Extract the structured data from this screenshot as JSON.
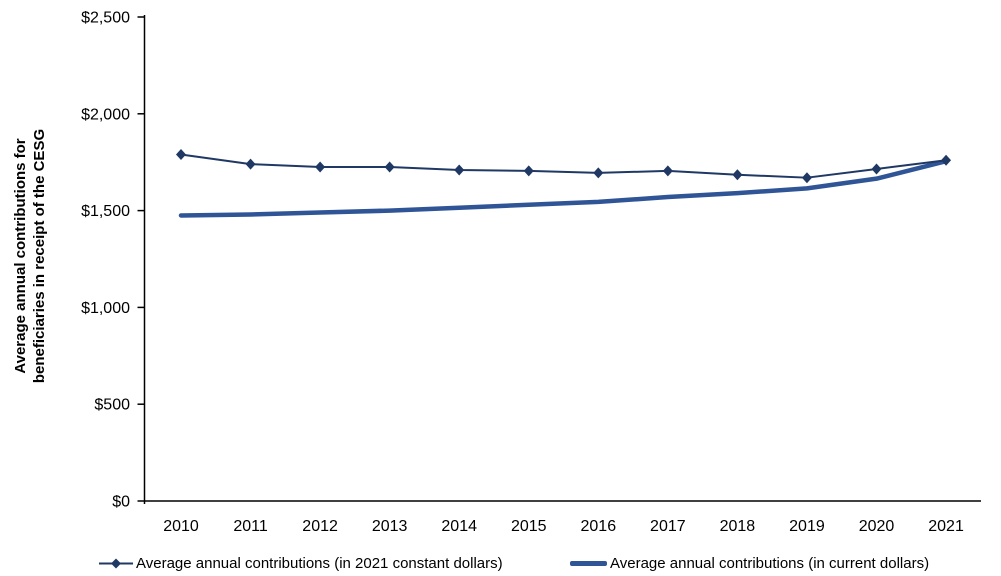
{
  "chart_data": {
    "type": "line",
    "title": "",
    "xlabel": "",
    "ylabel_lines": [
      "Average annual contributions for",
      "beneficiaries in receipt of the CESG"
    ],
    "categories": [
      "2010",
      "2011",
      "2012",
      "2013",
      "2014",
      "2015",
      "2016",
      "2017",
      "2018",
      "2019",
      "2020",
      "2021"
    ],
    "series": [
      {
        "name": "Average annual contributions (in 2021 constant dollars)",
        "marker": "diamond",
        "color": "#1f3864",
        "line_width": 2,
        "values": [
          1790,
          1740,
          1725,
          1725,
          1710,
          1705,
          1695,
          1705,
          1685,
          1670,
          1715,
          1760
        ]
      },
      {
        "name": "Average annual contributions (in current dollars)",
        "marker": "none",
        "color": "#2f5597",
        "line_width": 4.5,
        "values": [
          1475,
          1480,
          1490,
          1500,
          1515,
          1530,
          1545,
          1570,
          1590,
          1615,
          1665,
          1755
        ]
      }
    ],
    "ylim": [
      0,
      2500
    ],
    "ytick_step": 500,
    "ytick_labels": [
      "$0",
      "$500",
      "$1,000",
      "$1,500",
      "$2,000",
      "$2,500"
    ],
    "grid": "off",
    "legend_position": "bottom",
    "axis_color": "#000000"
  }
}
